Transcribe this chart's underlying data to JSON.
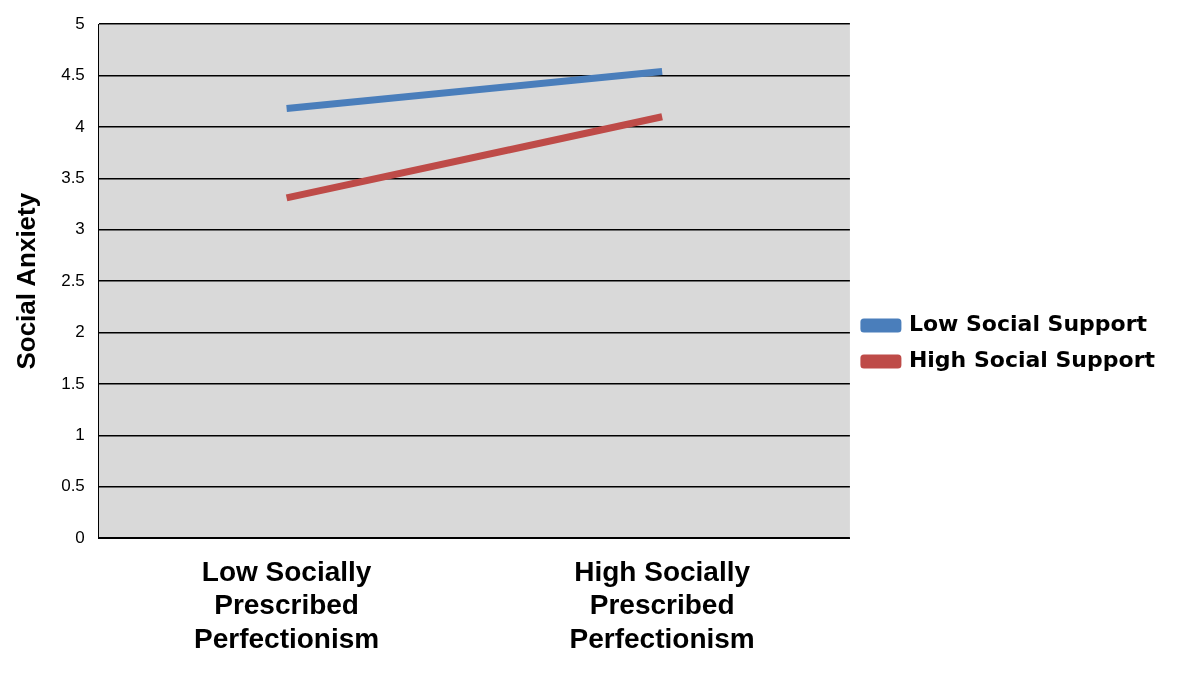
{
  "chart_data": {
    "type": "line",
    "ylabel": "Social Anxiety",
    "categories": [
      "Low Socially Prescribed Perfectionism",
      "High Socially Prescribed Perfectionism"
    ],
    "series": [
      {
        "name": "Low Social Support",
        "color": "#4a7ebb",
        "values": [
          4.18,
          4.54
        ]
      },
      {
        "name": "High Social Support",
        "color": "#be4b48",
        "values": [
          3.31,
          4.1
        ]
      }
    ],
    "ylim": [
      0,
      5
    ],
    "yticks": [
      0,
      0.5,
      1,
      1.5,
      2,
      2.5,
      3,
      3.5,
      4,
      4.5,
      5
    ],
    "grid": "y",
    "legend": "right",
    "marker": "none",
    "line_style": "solid"
  }
}
